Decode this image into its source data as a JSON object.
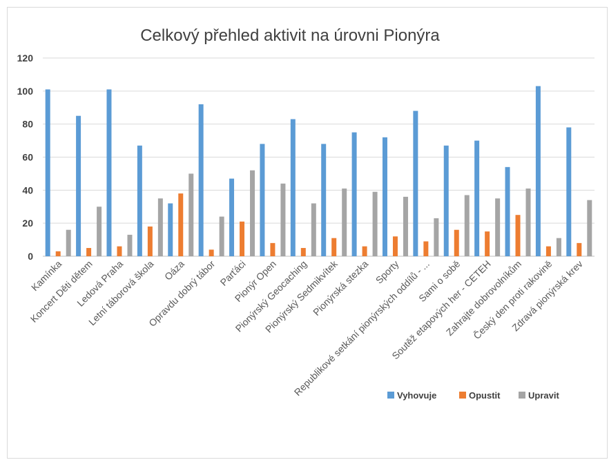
{
  "chart_data": {
    "type": "bar",
    "title": "Celkový přehled aktivit na úrovni Pionýra",
    "xlabel": "",
    "ylabel": "",
    "ylim": [
      0,
      120
    ],
    "yticks": [
      0,
      20,
      40,
      60,
      80,
      100,
      120
    ],
    "grid": true,
    "legend_position": "bottom-right",
    "categories": [
      "Kamínka",
      "Koncert Děti dětem",
      "Ledová Praha",
      "Letní táborová škola",
      "Oáza",
      "Opravdu dobrý tábor",
      "Parťáci",
      "Pionýr Open",
      "Pionýrský Geocaching",
      "Pionýrský Sedmikvítek",
      "Pionýrská stezka",
      "Sporty",
      "Republikové setkání pionýrských oddílů - ...",
      "Sami o sobě",
      "Soutěž etapových her - CETEH",
      "Zahrajte dobrovolníkům",
      "Český den proti rakovině",
      "Zdravá pionýrská krev"
    ],
    "series": [
      {
        "name": "Vyhovuje",
        "color": "#5b9bd5",
        "values": [
          101,
          85,
          101,
          67,
          32,
          92,
          47,
          68,
          83,
          68,
          75,
          72,
          88,
          67,
          70,
          54,
          103,
          78
        ]
      },
      {
        "name": "Opustit",
        "color": "#ed7d31",
        "values": [
          3,
          5,
          6,
          18,
          38,
          4,
          21,
          8,
          5,
          11,
          6,
          12,
          9,
          16,
          15,
          25,
          6,
          8
        ]
      },
      {
        "name": "Upravit",
        "color": "#a5a5a5",
        "values": [
          16,
          30,
          13,
          35,
          50,
          24,
          52,
          44,
          32,
          41,
          39,
          36,
          23,
          37,
          35,
          41,
          11,
          34
        ]
      }
    ]
  }
}
